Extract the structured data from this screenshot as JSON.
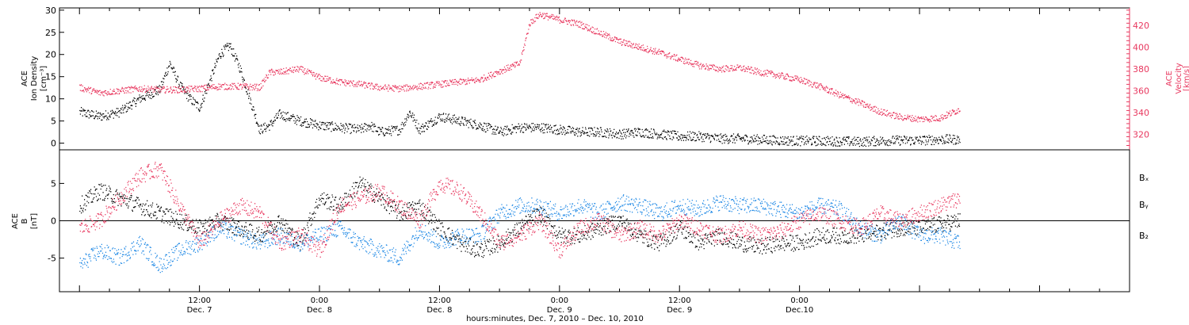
{
  "chart_data": [
    {
      "type": "scatter",
      "panel": "top",
      "ylabel_left": [
        "ACE",
        "Ion Density",
        "[cm⁻³]"
      ],
      "ylabel_right": [
        "ACE",
        "Velocity",
        "[km/s]"
      ],
      "ylim_left": [
        -1.5,
        30.5
      ],
      "yticks_left": [
        0,
        5,
        10,
        15,
        20,
        25,
        30
      ],
      "ylim_right": [
        306,
        436
      ],
      "yticks_right": [
        320,
        340,
        360,
        380,
        400,
        420
      ],
      "series": [
        {
          "axis": "left",
          "color": "#000000",
          "hours": [
            0,
            2,
            4,
            6,
            8,
            9,
            10,
            11,
            12,
            13,
            14,
            15,
            16,
            18,
            19,
            20,
            22,
            24,
            26,
            28,
            29,
            30,
            32,
            33,
            34,
            36,
            38,
            40,
            42,
            44,
            46,
            48,
            50,
            52,
            54,
            56,
            58,
            60,
            62,
            64,
            66,
            68,
            70,
            72,
            74,
            76,
            78,
            80,
            82,
            84,
            86,
            88
          ],
          "values": [
            7,
            6,
            7,
            10,
            12,
            18,
            13,
            10,
            8,
            14,
            20,
            22,
            17,
            3,
            4,
            6.5,
            5,
            4,
            3.5,
            3,
            4,
            2.5,
            3,
            7,
            3,
            6,
            5,
            4,
            2.5,
            3.5,
            3.5,
            3,
            2.5,
            2.5,
            2,
            2.5,
            2,
            1.5,
            1.5,
            1,
            1,
            0.8,
            0.6,
            0.5,
            0.5,
            0.4,
            0.3,
            0.5,
            0.6,
            0.6,
            0.8,
            0.8
          ]
        },
        {
          "axis": "right",
          "color": "#e8385f",
          "hours": [
            0,
            2,
            4,
            6,
            8,
            10,
            12,
            14,
            16,
            18,
            19,
            20,
            22,
            24,
            26,
            28,
            30,
            32,
            34,
            36,
            38,
            40,
            42,
            44,
            45,
            46,
            48,
            50,
            52,
            54,
            56,
            58,
            60,
            62,
            64,
            66,
            68,
            70,
            72,
            74,
            76,
            78,
            80,
            82,
            84,
            86,
            88
          ],
          "values": [
            363,
            358,
            360,
            362,
            361,
            361,
            362,
            364,
            364,
            363,
            377,
            377,
            380,
            372,
            368,
            366,
            363,
            362,
            364,
            366,
            368,
            370,
            378,
            385,
            422,
            430,
            425,
            421,
            413,
            405,
            400,
            395,
            389,
            383,
            380,
            381,
            377,
            374,
            370,
            364,
            356,
            349,
            341,
            336,
            334,
            335,
            343
          ]
        }
      ]
    },
    {
      "type": "scatter",
      "panel": "bottom",
      "ylabel_left": [
        "ACE",
        "B",
        "[nT]"
      ],
      "ylim_left": [
        -9.5,
        9.5
      ],
      "yticks_left": [
        -5,
        0,
        5
      ],
      "zero_line": true,
      "legend_position": "right",
      "legend": [
        "Bₓ",
        "Bᵧ",
        "B₂"
      ],
      "series": [
        {
          "name": "Bₓ",
          "color": "#000000",
          "hours": [
            0,
            2,
            4,
            6,
            8,
            10,
            12,
            14,
            16,
            18,
            20,
            22,
            24,
            26,
            28,
            30,
            32,
            34,
            36,
            38,
            40,
            42,
            44,
            46,
            48,
            50,
            52,
            54,
            56,
            58,
            60,
            62,
            64,
            66,
            68,
            70,
            72,
            74,
            76,
            78,
            80,
            82,
            84,
            86,
            88
          ],
          "values": [
            2,
            4,
            3,
            2,
            1,
            0,
            -1,
            0,
            -1,
            -2,
            0,
            -3,
            3,
            2,
            5,
            3,
            1,
            2,
            -1,
            -3,
            -4,
            -3,
            -1,
            1,
            -2,
            -2,
            -1,
            0,
            -2,
            -3,
            -1,
            -3,
            -2,
            -3,
            -3.5,
            -3,
            -3,
            -2,
            -2,
            -2,
            -1.5,
            -1,
            -1,
            -0.5,
            0
          ]
        },
        {
          "name": "Bᵧ",
          "color": "#1e88e5",
          "hours": [
            0,
            2,
            4,
            6,
            8,
            10,
            12,
            14,
            16,
            18,
            20,
            22,
            24,
            26,
            28,
            30,
            32,
            34,
            36,
            38,
            40,
            42,
            44,
            46,
            48,
            50,
            52,
            54,
            56,
            58,
            60,
            62,
            64,
            66,
            68,
            70,
            72,
            74,
            76,
            78,
            80,
            82,
            84,
            86,
            88
          ],
          "values": [
            -6,
            -4,
            -5,
            -3,
            -6,
            -4,
            -3,
            -1,
            -2,
            -3,
            -2,
            -3,
            -2,
            -1,
            -3,
            -4,
            -5,
            -1,
            -3,
            -2,
            -2,
            1,
            2,
            2,
            1,
            2,
            1,
            2.5,
            2,
            1,
            2,
            1.5,
            2.5,
            2,
            2,
            1.5,
            1,
            2,
            1.5,
            -1,
            -2,
            0,
            -2,
            -2,
            -3
          ]
        },
        {
          "name": "B₂",
          "color": "#e8385f",
          "hours": [
            0,
            2,
            4,
            6,
            8,
            10,
            12,
            14,
            16,
            18,
            20,
            22,
            24,
            26,
            28,
            30,
            32,
            34,
            36,
            38,
            40,
            42,
            44,
            46,
            48,
            50,
            52,
            54,
            56,
            58,
            60,
            62,
            64,
            66,
            68,
            70,
            72,
            74,
            76,
            78,
            80,
            82,
            84,
            86,
            88
          ],
          "values": [
            -1,
            0,
            3,
            6,
            7,
            2,
            -3,
            0,
            2,
            1,
            -3,
            -2,
            -4,
            2,
            3,
            4,
            2,
            0,
            5,
            4,
            1,
            -3,
            -2,
            0,
            -4,
            -1,
            0,
            -2,
            -1,
            -2,
            0,
            -1,
            -2,
            -1,
            -2,
            -1.5,
            0,
            1,
            0,
            -1,
            1,
            0,
            1,
            2,
            3
          ]
        }
      ]
    },
    {
      "type": "axis",
      "x_hours_range": [
        -2,
        105
      ],
      "time_ticks": [
        {
          "hour": 12,
          "time": "12:00",
          "date": "Dec. 7"
        },
        {
          "hour": 24,
          "time": "0:00",
          "date": "Dec. 8"
        },
        {
          "hour": 36,
          "time": "12:00",
          "date": "Dec. 8"
        },
        {
          "hour": 48,
          "time": "0:00",
          "date": "Dec. 9"
        },
        {
          "hour": 60,
          "time": "12:00",
          "date": "Dec. 9"
        },
        {
          "hour": 72,
          "time": "0:00",
          "date": "Dec.10"
        }
      ],
      "xlabel": "hours:minutes, Dec. 7, 2010 – Dec. 10, 2010"
    }
  ]
}
